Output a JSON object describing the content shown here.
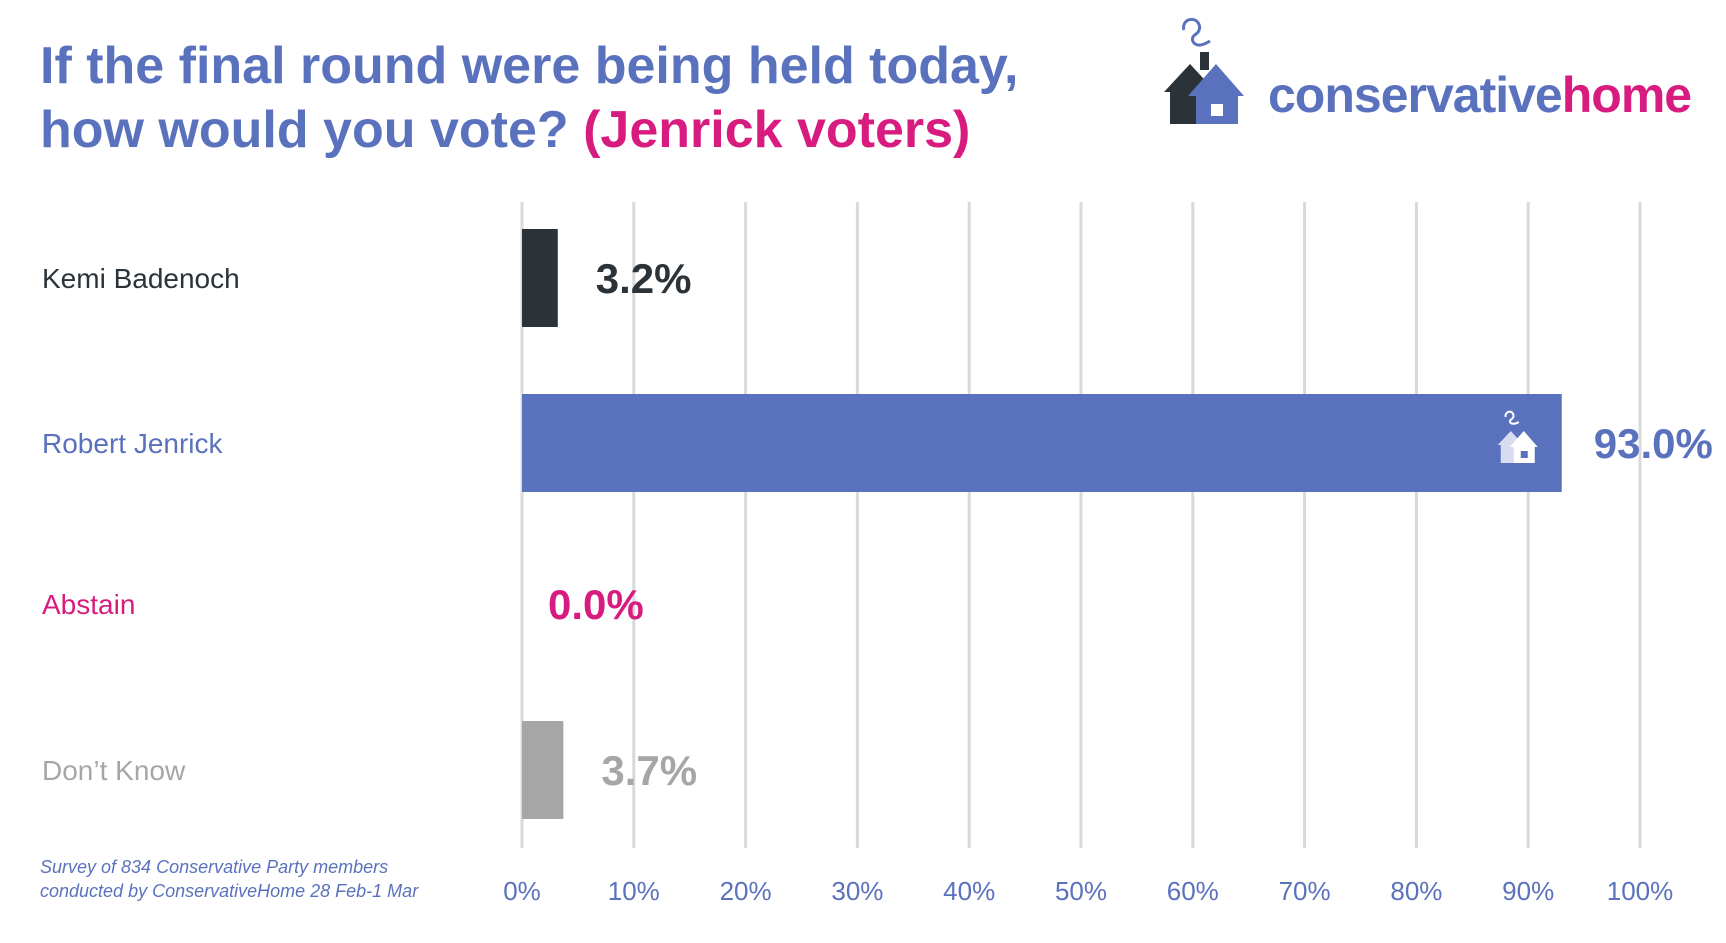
{
  "title": {
    "line1": "If the final round were being held today,",
    "line2": "how would you vote?",
    "highlight": "(Jenrick voters)"
  },
  "logo": {
    "part1": "conservative",
    "part2": "home",
    "icon": "house-icon"
  },
  "footnote": {
    "line1": "Survey of 834 Conservative Party members",
    "line2": "conducted by ConservativeHome 28 Feb-1 Mar"
  },
  "colors": {
    "brand_blue": "#5a72bd",
    "brand_pink": "#d81b7f",
    "dark": "#2b3339",
    "grey": "#a6a6a6",
    "gridline": "#d9d9d9"
  },
  "chart_data": {
    "type": "bar",
    "orientation": "horizontal",
    "categories": [
      "Kemi Badenoch",
      "Robert Jenrick",
      "Abstain",
      "Don’t Know"
    ],
    "values": [
      3.2,
      93.0,
      0.0,
      3.7
    ],
    "value_labels": [
      "3.2%",
      "93.0%",
      "0.0%",
      "3.7%"
    ],
    "bar_colors": [
      "#2b3339",
      "#5a72bd",
      "#d81b7f",
      "#a6a6a6"
    ],
    "label_colors": [
      "#2b3339",
      "#5a72bd",
      "#d81b7f",
      "#a6a6a6"
    ],
    "xlim": [
      0,
      100
    ],
    "xticks": [
      0,
      10,
      20,
      30,
      40,
      50,
      60,
      70,
      80,
      90,
      100
    ],
    "xtick_labels": [
      "0%",
      "10%",
      "20%",
      "30%",
      "40%",
      "50%",
      "60%",
      "70%",
      "80%",
      "90%",
      "100%"
    ],
    "grid": true,
    "bar_icon": "house-icon"
  }
}
